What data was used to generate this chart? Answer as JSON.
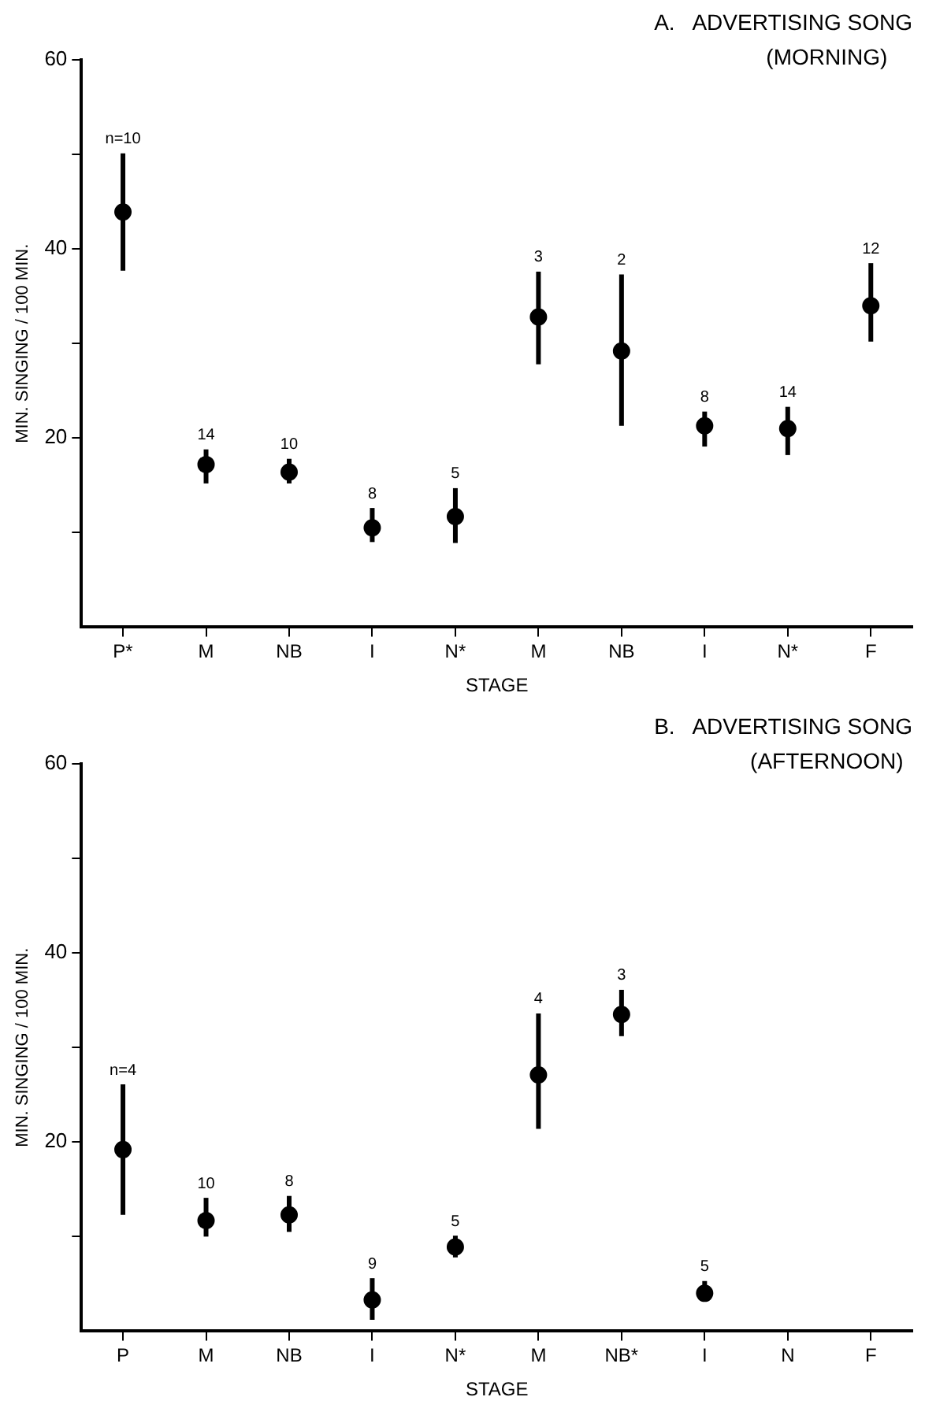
{
  "chart_data": [
    {
      "type": "scatter",
      "title": "A.   ADVERTISING SONG",
      "subtitle": "(MORNING)",
      "xlabel": "STAGE",
      "ylabel": "MIN. SINGING / 100 MIN.",
      "color": "#000000",
      "marker": "circle",
      "categories": [
        "P*",
        "M",
        "NB",
        "I",
        "N*",
        "M",
        "NB",
        "I",
        "N*",
        "F"
      ],
      "values": [
        43.9,
        17.2,
        16.4,
        10.5,
        11.7,
        32.8,
        29.2,
        21.3,
        21.0,
        34.0
      ],
      "errors": [
        [
          37.7,
          50.1
        ],
        [
          15.2,
          18.8
        ],
        [
          15.2,
          17.8
        ],
        [
          9.0,
          12.6
        ],
        [
          8.9,
          14.7
        ],
        [
          27.8,
          37.6
        ],
        [
          21.3,
          37.3
        ],
        [
          19.1,
          22.8
        ],
        [
          18.2,
          23.3
        ],
        [
          30.2,
          38.5
        ]
      ],
      "ylim": [
        0,
        60
      ],
      "yticks": [
        {
          "value": 10,
          "label": null
        },
        20,
        {
          "value": 30,
          "label": null
        },
        40,
        {
          "value": 50,
          "label": null
        },
        60
      ],
      "annotations": [
        "n=10",
        "14",
        "10",
        "8",
        "5",
        "3",
        "2",
        "8",
        "14",
        "12"
      ]
    },
    {
      "type": "scatter",
      "title": "B.   ADVERTISING SONG",
      "subtitle": "(AFTERNOON)",
      "xlabel": "STAGE",
      "ylabel": "MIN. SINGING / 100 MIN.",
      "color": "#000000",
      "marker": "circle",
      "categories": [
        "P",
        "M",
        "NB",
        "I",
        "N*",
        "M",
        "NB*",
        "I",
        "N",
        "F"
      ],
      "values": [
        19.2,
        11.7,
        12.3,
        3.3,
        8.9,
        27.1,
        33.5,
        4.0,
        null,
        null
      ],
      "errors": [
        [
          12.3,
          26.1
        ],
        [
          10.0,
          14.1
        ],
        [
          10.5,
          14.3
        ],
        [
          1.2,
          5.6
        ],
        [
          7.8,
          10.1
        ],
        [
          21.4,
          33.6
        ],
        [
          31.2,
          36.1
        ],
        [
          3.2,
          5.3
        ],
        null,
        null
      ],
      "ylim": [
        0,
        60
      ],
      "yticks": [
        {
          "value": 10,
          "label": null
        },
        20,
        {
          "value": 30,
          "label": null
        },
        40,
        {
          "value": 50,
          "label": null
        },
        60
      ],
      "annotations": [
        "n=4",
        "10",
        "8",
        "9",
        "5",
        "4",
        "3",
        "5"
      ]
    }
  ]
}
